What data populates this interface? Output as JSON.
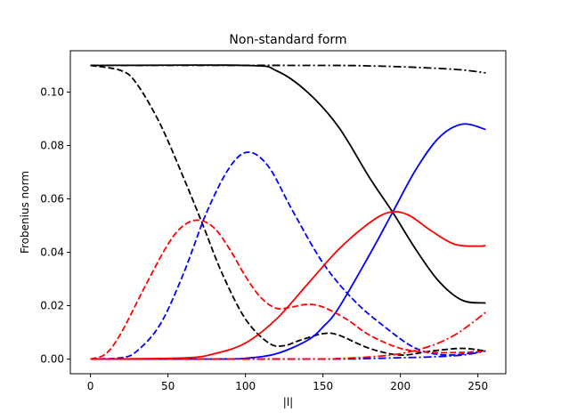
{
  "chart_data": {
    "type": "line",
    "title": "Non-standard form",
    "xlabel": "|l|",
    "ylabel": "Frobenius norm",
    "xlim": [
      -13,
      268
    ],
    "ylim": [
      -0.0055,
      0.1155
    ],
    "x_ticks": [
      0,
      50,
      100,
      150,
      200,
      250
    ],
    "x_tick_labels": [
      "0",
      "50",
      "100",
      "150",
      "200",
      "250"
    ],
    "y_ticks": [
      0.0,
      0.02,
      0.04,
      0.06,
      0.08,
      0.1
    ],
    "y_tick_labels": [
      "0.00",
      "0.02",
      "0.04",
      "0.06",
      "0.08",
      "0.10"
    ],
    "grid": false,
    "legend": "none",
    "series": [
      {
        "name": "black-solid",
        "color": "#000000",
        "style": "solid",
        "x": [
          0,
          100,
          120,
          140,
          160,
          180,
          195,
          210,
          225,
          240,
          255
        ],
        "y": [
          0.11,
          0.11,
          0.108,
          0.1,
          0.087,
          0.068,
          0.055,
          0.041,
          0.029,
          0.022,
          0.021
        ]
      },
      {
        "name": "black-dashed",
        "color": "#000000",
        "style": "dashed",
        "x": [
          0,
          20,
          30,
          45,
          60,
          72,
          85,
          100,
          115,
          125,
          135,
          150,
          160,
          180,
          200,
          220,
          240,
          255
        ],
        "y": [
          0.11,
          0.108,
          0.103,
          0.088,
          0.068,
          0.051,
          0.032,
          0.015,
          0.006,
          0.005,
          0.007,
          0.0095,
          0.009,
          0.004,
          0.0015,
          0.003,
          0.004,
          0.003
        ]
      },
      {
        "name": "black-dashdot",
        "color": "#000000",
        "style": "dashdot",
        "x": [
          0,
          150,
          180,
          200,
          220,
          240,
          255
        ],
        "y": [
          0.11,
          0.11,
          0.1098,
          0.1095,
          0.109,
          0.1083,
          0.1072
        ]
      },
      {
        "name": "blue-solid",
        "color": "#0000ff",
        "style": "solid",
        "x": [
          0,
          80,
          100,
          120,
          140,
          150,
          160,
          180,
          195,
          210,
          225,
          240,
          255
        ],
        "y": [
          0.0,
          0.0,
          0.0003,
          0.002,
          0.007,
          0.012,
          0.019,
          0.039,
          0.055,
          0.071,
          0.083,
          0.088,
          0.086
        ]
      },
      {
        "name": "blue-dashed",
        "color": "#0000ff",
        "style": "dashed",
        "x": [
          0,
          20,
          30,
          45,
          60,
          75,
          90,
          102,
          115,
          130,
          150,
          170,
          190,
          210,
          230,
          255
        ],
        "y": [
          0.0,
          0.0005,
          0.003,
          0.013,
          0.032,
          0.055,
          0.072,
          0.0775,
          0.072,
          0.056,
          0.036,
          0.022,
          0.012,
          0.004,
          0.0015,
          0.003
        ]
      },
      {
        "name": "blue-dashdot",
        "color": "#0000ff",
        "style": "dashdot",
        "x": [
          0,
          150,
          180,
          200,
          220,
          240,
          255
        ],
        "y": [
          0.0,
          0.0,
          0.0002,
          0.0005,
          0.0008,
          0.0015,
          0.003
        ]
      },
      {
        "name": "red-solid",
        "color": "#ff0000",
        "style": "solid",
        "x": [
          0,
          60,
          80,
          100,
          120,
          140,
          160,
          180,
          193,
          205,
          220,
          235,
          250,
          255
        ],
        "y": [
          0.0,
          0.0004,
          0.002,
          0.006,
          0.015,
          0.028,
          0.041,
          0.051,
          0.055,
          0.054,
          0.048,
          0.043,
          0.0423,
          0.0425
        ]
      },
      {
        "name": "red-dashed",
        "color": "#ff0000",
        "style": "dashed",
        "x": [
          0,
          10,
          20,
          35,
          50,
          60,
          70,
          80,
          90,
          100,
          110,
          120,
          130,
          140,
          150,
          165,
          180,
          200,
          220,
          240,
          255
        ],
        "y": [
          0.0,
          0.002,
          0.01,
          0.027,
          0.043,
          0.05,
          0.052,
          0.049,
          0.041,
          0.031,
          0.023,
          0.019,
          0.0195,
          0.0205,
          0.0195,
          0.015,
          0.009,
          0.004,
          0.0025,
          0.0025,
          0.003
        ]
      },
      {
        "name": "red-dashdot",
        "color": "#ff0000",
        "style": "dashdot",
        "x": [
          0,
          140,
          160,
          180,
          200,
          220,
          235,
          245,
          255
        ],
        "y": [
          0.0,
          0.0,
          0.0002,
          0.0008,
          0.002,
          0.005,
          0.009,
          0.013,
          0.0175
        ]
      }
    ]
  }
}
